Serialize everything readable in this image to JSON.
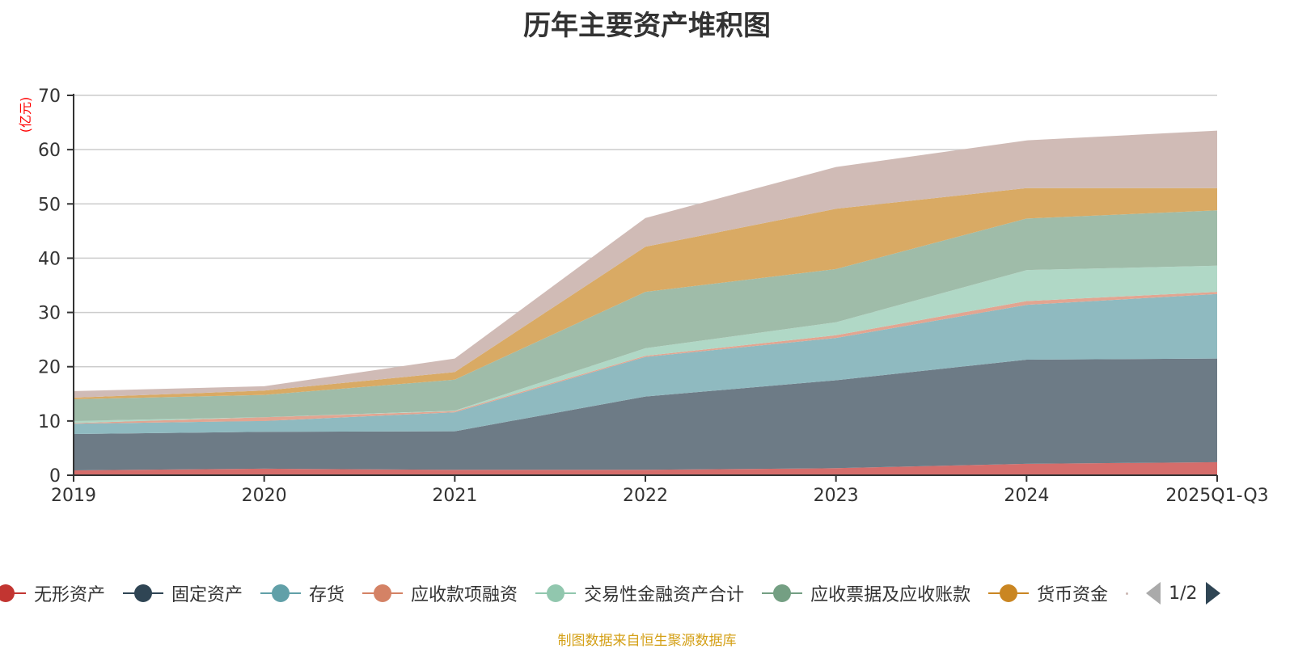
{
  "chart_data": {
    "type": "area",
    "stacked": true,
    "title": "历年主要资产堆积图",
    "ylabel": "(亿元)",
    "xlabel": "",
    "categories": [
      "2019",
      "2020",
      "2021",
      "2022",
      "2023",
      "2024",
      "2025Q1-Q3"
    ],
    "ylim": [
      0,
      70
    ],
    "yticks": [
      0,
      10,
      20,
      30,
      40,
      50,
      60,
      70
    ],
    "grid": true,
    "legend_position": "bottom",
    "series": [
      {
        "name": "无形资产",
        "color": "#c23531",
        "fill": "#d56d6b",
        "values": [
          0.9,
          1.2,
          1.0,
          1.0,
          1.3,
          2.1,
          2.4
        ]
      },
      {
        "name": "固定资产",
        "color": "#2f4554",
        "fill": "#6d7b86",
        "values": [
          6.7,
          6.8,
          7.1,
          13.5,
          16.2,
          19.2,
          19.1
        ]
      },
      {
        "name": "存货",
        "color": "#61a0a8",
        "fill": "#8fbac0",
        "values": [
          1.9,
          2.0,
          3.5,
          7.3,
          7.8,
          10.1,
          11.9
        ]
      },
      {
        "name": "应收款项融资",
        "color": "#d48265",
        "fill": "#e2a591",
        "values": [
          0.1,
          0.7,
          0.2,
          0.2,
          0.5,
          0.7,
          0.4
        ]
      },
      {
        "name": "交易性金融资产合计",
        "color": "#91c7ae",
        "fill": "#b0d8c6",
        "values": [
          0.4,
          0.0,
          0.1,
          1.4,
          2.4,
          5.7,
          4.8
        ]
      },
      {
        "name": "应收票据及应收账款",
        "color": "#749f83",
        "fill": "#9fbca9",
        "values": [
          4.0,
          4.1,
          5.7,
          10.4,
          9.8,
          9.5,
          10.2
        ]
      },
      {
        "name": "货币资金",
        "color": "#ca8622",
        "fill": "#d9aa64",
        "values": [
          0.3,
          0.8,
          1.4,
          8.3,
          11.1,
          5.6,
          4.1
        ]
      },
      {
        "name": "",
        "color": "#bda29a",
        "fill": "#d0bbb6",
        "values": [
          1.2,
          0.8,
          2.5,
          5.3,
          7.7,
          8.8,
          10.6
        ]
      }
    ]
  },
  "legend": {
    "items": [
      {
        "label": "无形资产",
        "color": "#c23531"
      },
      {
        "label": "固定资产",
        "color": "#2f4554"
      },
      {
        "label": "存货",
        "color": "#61a0a8"
      },
      {
        "label": "应收款项融资",
        "color": "#d48265"
      },
      {
        "label": "交易性金融资产合计",
        "color": "#91c7ae"
      },
      {
        "label": "应收票据及应收账款",
        "color": "#749f83"
      },
      {
        "label": "货币资金",
        "color": "#ca8622"
      }
    ],
    "pager": "1/2"
  },
  "source": "制图数据来自恒生聚源数据库"
}
